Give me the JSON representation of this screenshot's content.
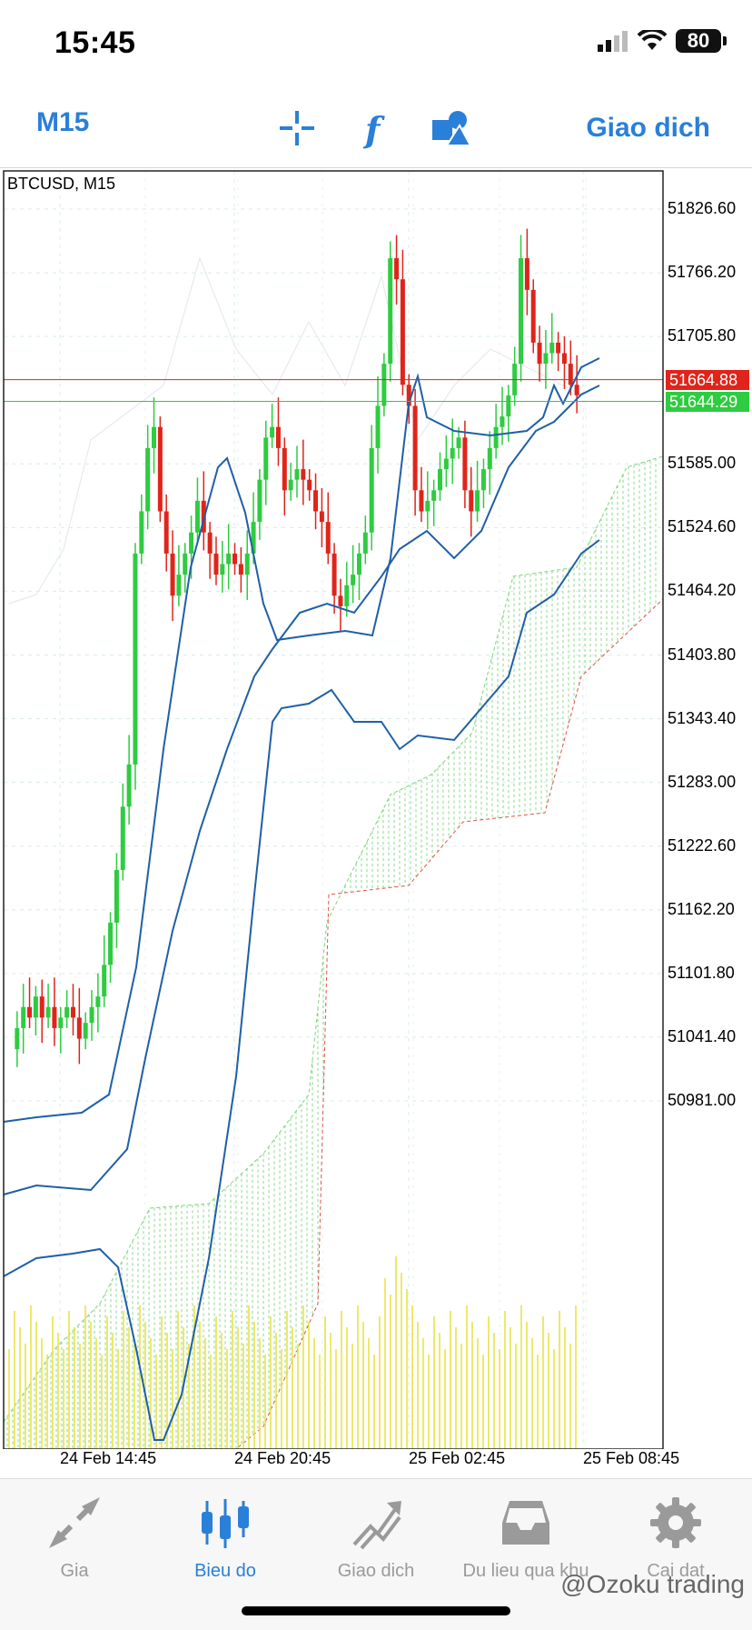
{
  "status_bar": {
    "time": "15:45",
    "battery": "80",
    "icons": [
      "signal-icon",
      "wifi-icon",
      "battery-icon"
    ]
  },
  "toolbar": {
    "timeframe": "M15",
    "icons": [
      "crosshair-icon",
      "indicator-function-icon",
      "objects-icon"
    ],
    "trade_label": "Giao dich"
  },
  "chart": {
    "title": "BTCUSD, M15",
    "price_axis": [
      "51826.60",
      "51766.20",
      "51705.80",
      "51585.00",
      "51524.60",
      "51464.20",
      "51403.80",
      "51343.40",
      "51283.00",
      "51222.60",
      "51162.20",
      "51101.80",
      "51041.40",
      "50981.00"
    ],
    "ask_price": "51664.88",
    "bid_price": "51644.29",
    "time_axis": [
      "24 Feb 14:45",
      "24 Feb 20:45",
      "25 Feb 02:45",
      "25 Feb 08:45"
    ],
    "colors": {
      "bull": "#2ecc40",
      "bear": "#e0241a",
      "bands": "#1f5fa8",
      "ask_line": "#e0241a",
      "bid_line": "#2ecc40",
      "volume": "#e6e23a",
      "cloud": "#7ed47e"
    }
  },
  "tabbar": {
    "items": [
      {
        "label": "Gia",
        "icon": "quotes-arrows-icon",
        "active": false
      },
      {
        "label": "Bieu do",
        "icon": "candlestick-chart-icon",
        "active": true
      },
      {
        "label": "Giao dich",
        "icon": "trade-chart-icon",
        "active": false
      },
      {
        "label": "Du lieu qua khu",
        "icon": "history-inbox-icon",
        "active": false
      },
      {
        "label": "Cai dat",
        "icon": "gear-icon",
        "active": false
      }
    ]
  },
  "watermark": "@Ozoku trading"
}
